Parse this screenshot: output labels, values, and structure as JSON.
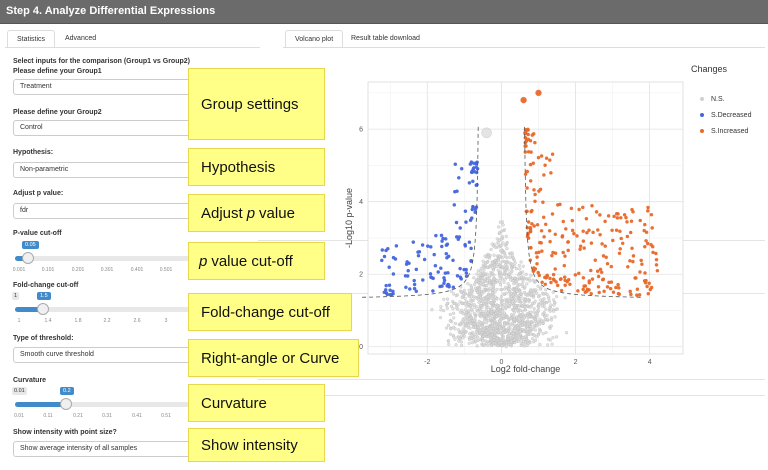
{
  "header": {
    "title": "Step 4. Analyze Differential Expressions"
  },
  "tabs_left": [
    {
      "label": "Statistics",
      "active": true
    },
    {
      "label": "Advanced",
      "active": false
    }
  ],
  "tabs_right": [
    {
      "label": "Volcano plot",
      "active": true
    },
    {
      "label": "Result table download",
      "active": false
    }
  ],
  "form": {
    "section_title": "Select inputs for the comparison (Group1 vs Group2)",
    "group1": {
      "label": "Please define your Group1",
      "value": "Treatment"
    },
    "group2": {
      "label": "Please define your Group2",
      "value": "Control"
    },
    "hypothesis": {
      "label": "Hypothesis:",
      "value": "Non-parametric"
    },
    "adjust": {
      "label": "Adjust p value:",
      "value": "fdr"
    },
    "pvalue": {
      "label": "P-value cut-off",
      "value": "0.05",
      "level": 0.05,
      "min_label": "0.001",
      "ticks": [
        "0.001",
        "0.101",
        "0.201",
        "0.301",
        "0.401",
        "0.501",
        "0.601",
        "0.701"
      ]
    },
    "foldchange": {
      "label": "Fold-change cut-off",
      "value": "1.5",
      "min": "1",
      "level": 0.11,
      "ticks": [
        "1",
        "1.4",
        "1.8",
        "2.2",
        "2.6",
        "3",
        "3.4",
        "3.8"
      ]
    },
    "threshold": {
      "label": "Type of threshold:",
      "value": "Smooth curve threshold"
    },
    "curvature": {
      "label": "Curvature",
      "value": "0.2",
      "min": "0.01",
      "level": 0.2,
      "ticks": [
        "0.01",
        "0.11",
        "0.21",
        "0.31",
        "0.41",
        "0.51",
        "0.61",
        "0.71"
      ]
    },
    "intensity": {
      "label": "Show intensity with point size?",
      "value": "Show average intensity of all samples"
    }
  },
  "annotations": {
    "group": "Group settings",
    "hypothesis": "Hypothesis",
    "adjust_pre": "Adjust",
    "adjust_em": "p",
    "adjust_post": "value",
    "pcut_em": "p",
    "pcut_post": "value cut-off",
    "fold": "Fold-change cut-off",
    "threshold": "Right-angle or Curve",
    "curvature": "Curvature",
    "intensity": "Show intensity"
  },
  "legend": {
    "title": "Changes",
    "items": [
      {
        "label": "N.S.",
        "color": "#d0d0d0"
      },
      {
        "label": "S.Decreased",
        "color": "#4466dd"
      },
      {
        "label": "S.Increased",
        "color": "#e8692a"
      }
    ]
  },
  "chart_data": {
    "type": "scatter",
    "xlabel": "Log2 fold-change",
    "ylabel": "-Log10 p-value",
    "xlim": [
      -3.6,
      4.9
    ],
    "ylim": [
      -0.2,
      7.3
    ],
    "xticks": [
      -2,
      0,
      2,
      4
    ],
    "yticks": [
      0,
      2,
      4,
      6
    ],
    "grid": true,
    "legend_position": "right",
    "series": [
      {
        "name": "N.S.",
        "color": "#d8d8d8",
        "count": 1400
      },
      {
        "name": "S.Decreased",
        "color": "#4466dd",
        "count": 130
      },
      {
        "name": "S.Increased",
        "color": "#e8692a",
        "count": 250
      }
    ],
    "highlighted_points": [
      {
        "x": 1.0,
        "y": 7.0,
        "series": "S.Increased"
      },
      {
        "x": 0.6,
        "y": 6.8,
        "series": "S.Increased"
      },
      {
        "x": -0.4,
        "y": 5.9,
        "series": "N.S."
      }
    ],
    "threshold_curve": {
      "x_cut": 0.585,
      "p_cut": 0.05,
      "curvature": 0.2
    }
  }
}
